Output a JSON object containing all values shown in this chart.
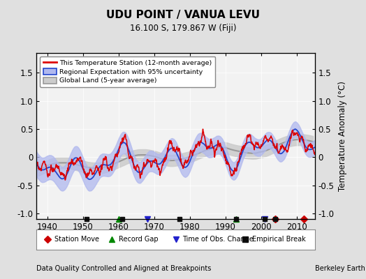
{
  "title": "UDU POINT / VANUA LEVU",
  "subtitle": "16.100 S, 179.867 W (Fiji)",
  "ylabel": "Temperature Anomaly (°C)",
  "xlabel_note": "Data Quality Controlled and Aligned at Breakpoints",
  "credit": "Berkeley Earth",
  "xlim": [
    1937,
    2015
  ],
  "ylim": [
    -1.1,
    1.85
  ],
  "yticks": [
    -1.0,
    -0.5,
    0.0,
    0.5,
    1.0,
    1.5
  ],
  "xticks": [
    1940,
    1950,
    1960,
    1970,
    1980,
    1990,
    2000,
    2010
  ],
  "bg_color": "#e0e0e0",
  "plot_bg_color": "#f2f2f2",
  "red_color": "#dd0000",
  "blue_color": "#2244cc",
  "blue_fill_color": "#b0b8ee",
  "gray_color": "#999999",
  "gray_fill_color": "#cccccc",
  "legend_items": [
    "This Temperature Station (12-month average)",
    "Regional Expectation with 95% uncertainty",
    "Global Land (5-year average)"
  ],
  "markers": {
    "station_move": {
      "years": [
        2004,
        2012
      ],
      "color": "#cc0000",
      "marker": "D"
    },
    "record_gap": {
      "years": [
        1960,
        1993
      ],
      "color": "#008800",
      "marker": "^"
    },
    "obs_change": {
      "years": [
        1968,
        2001
      ],
      "color": "#2222cc",
      "marker": "v"
    },
    "emp_break": {
      "years": [
        1951,
        1961,
        1977,
        1993,
        2001,
        2004
      ],
      "color": "#111111",
      "marker": "s"
    }
  },
  "seed": 42
}
